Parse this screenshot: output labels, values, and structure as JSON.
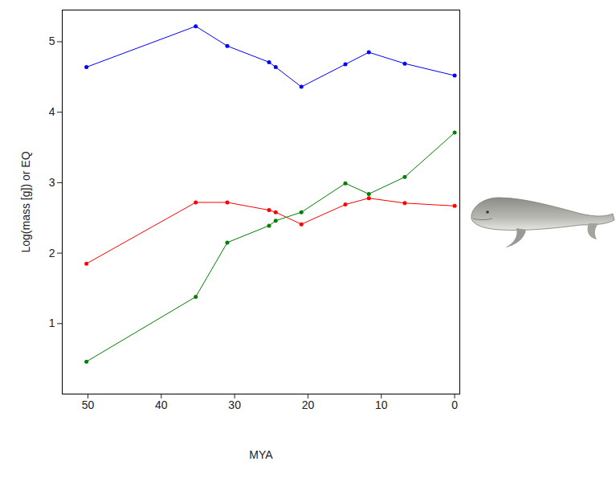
{
  "chart_data": {
    "type": "line",
    "x_label": "MYA",
    "y_label": "Log(mass [g]) or EQ",
    "x": [
      50.2,
      35.3,
      31,
      25.3,
      24.4,
      20.9,
      14.9,
      11.7,
      6.8,
      0
    ],
    "series": [
      {
        "color": "#0000ff",
        "values": [
          4.64,
          5.22,
          4.94,
          4.71,
          4.64,
          4.36,
          4.68,
          4.85,
          4.69,
          4.52
        ]
      },
      {
        "color": "#ff0000",
        "values": [
          1.85,
          2.72,
          2.72,
          2.61,
          2.58,
          2.41,
          2.69,
          2.78,
          2.71,
          2.67
        ]
      },
      {
        "color": "#008000",
        "values": [
          0.46,
          1.38,
          2.15,
          2.39,
          2.46,
          2.58,
          2.99,
          2.84,
          3.08,
          3.71
        ]
      }
    ],
    "xlim": [
      53.5,
      -0.7
    ],
    "ylim": [
      0,
      5.45
    ],
    "xticks": [
      50,
      40,
      30,
      20,
      10,
      0
    ],
    "yticks": [
      1,
      2,
      3,
      4,
      5
    ],
    "grid": false,
    "marker": "circle",
    "line_style": "solid"
  }
}
